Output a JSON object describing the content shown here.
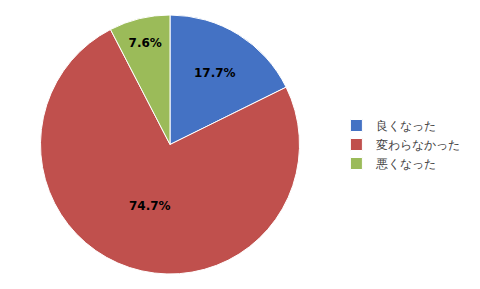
{
  "chart_data": {
    "type": "pie",
    "categories": [
      "良くなった",
      "変わらなかった",
      "悪くなった"
    ],
    "values": [
      17.7,
      74.7,
      7.6
    ],
    "value_labels": [
      "17.7%",
      "74.7%",
      "7.6%"
    ],
    "colors": [
      "#4472C4",
      "#C0504D",
      "#9BBB59"
    ],
    "data_labels": true,
    "legend": "right"
  }
}
